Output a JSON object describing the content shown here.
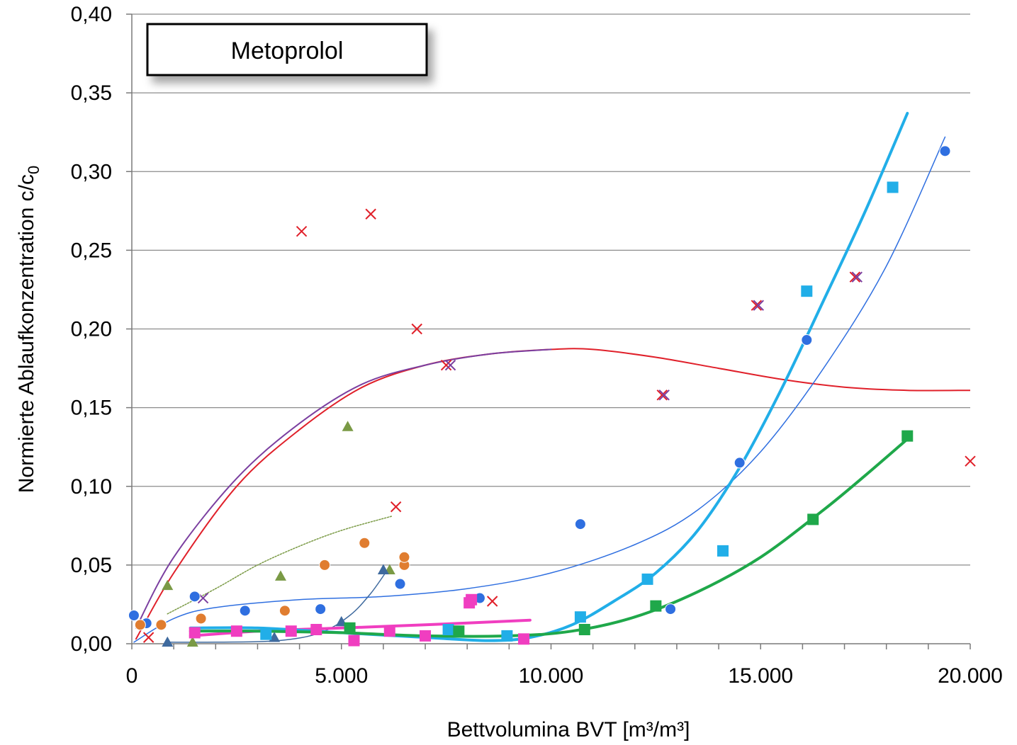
{
  "chart_data": {
    "type": "scatter",
    "title": "Metoprolol",
    "xlabel": "Bettvolumina  BVT [m³/m³]",
    "ylabel_main": "Normierte  Ablaufkonzentration  c/c",
    "ylabel_sub": "0",
    "xlim": [
      0,
      20000
    ],
    "ylim": [
      0,
      0.4
    ],
    "x_ticks": [
      0,
      5000,
      10000,
      15000,
      20000
    ],
    "x_tick_labels": [
      "0",
      "5.000",
      "10.000",
      "15.000",
      "20.000"
    ],
    "y_ticks": [
      0,
      0.05,
      0.1,
      0.15,
      0.2,
      0.25,
      0.3,
      0.35,
      0.4
    ],
    "y_tick_labels": [
      "0,00",
      "0,05",
      "0,10",
      "0,15",
      "0,20",
      "0,25",
      "0,30",
      "0,35",
      "0,40"
    ],
    "grid": "horizontal",
    "legend": "top-left",
    "series": [
      {
        "marker": "x",
        "color": "#e0202a",
        "points": [
          [
            400,
            0.004
          ],
          [
            4050,
            0.262
          ],
          [
            5700,
            0.273
          ],
          [
            6300,
            0.087
          ],
          [
            6800,
            0.2
          ],
          [
            7500,
            0.177
          ],
          [
            8600,
            0.027
          ],
          [
            12650,
            0.158
          ],
          [
            14900,
            0.215
          ],
          [
            17250,
            0.233
          ],
          [
            20000,
            0.116
          ]
        ],
        "trend": {
          "color": "#e0202a",
          "width": 2,
          "points": [
            [
              100,
              0.003
            ],
            [
              1000,
              0.045
            ],
            [
              2500,
              0.1
            ],
            [
              4000,
              0.136
            ],
            [
              5500,
              0.163
            ],
            [
              7000,
              0.177
            ],
            [
              8500,
              0.184
            ],
            [
              10000,
              0.187
            ],
            [
              11000,
              0.187
            ],
            [
              12500,
              0.182
            ],
            [
              14000,
              0.175
            ],
            [
              15500,
              0.168
            ],
            [
              17000,
              0.163
            ],
            [
              18500,
              0.161
            ],
            [
              20000,
              0.161
            ]
          ]
        }
      },
      {
        "marker": "x",
        "color": "#7b3fa0",
        "points": [
          [
            1700,
            0.029
          ],
          [
            7600,
            0.177
          ],
          [
            12700,
            0.158
          ],
          [
            14950,
            0.215
          ],
          [
            17300,
            0.233
          ]
        ],
        "trend": {
          "color": "#7b3fa0",
          "width": 2,
          "points": [
            [
              100,
              0.01
            ],
            [
              1000,
              0.055
            ],
            [
              2500,
              0.105
            ],
            [
              4000,
              0.14
            ],
            [
              5500,
              0.165
            ],
            [
              7000,
              0.177
            ],
            [
              8500,
              0.184
            ],
            [
              10000,
              0.187
            ]
          ]
        }
      },
      {
        "marker": "circle",
        "color": "#2f6fe0",
        "points": [
          [
            50,
            0.018
          ],
          [
            350,
            0.013
          ],
          [
            1500,
            0.03
          ],
          [
            2700,
            0.021
          ],
          [
            4500,
            0.022
          ],
          [
            6400,
            0.038
          ],
          [
            8300,
            0.029
          ],
          [
            10700,
            0.076
          ],
          [
            12850,
            0.022
          ],
          [
            14500,
            0.115
          ],
          [
            16100,
            0.193
          ],
          [
            19400,
            0.313
          ]
        ],
        "trend": {
          "color": "#2f6fe0",
          "width": 1.5,
          "points": [
            [
              50,
              0.001
            ],
            [
              1000,
              0.016
            ],
            [
              2000,
              0.023
            ],
            [
              4000,
              0.028
            ],
            [
              6000,
              0.03
            ],
            [
              8000,
              0.035
            ],
            [
              10000,
              0.045
            ],
            [
              12000,
              0.063
            ],
            [
              13500,
              0.085
            ],
            [
              15000,
              0.122
            ],
            [
              16500,
              0.175
            ],
            [
              18000,
              0.24
            ],
            [
              19400,
              0.322
            ]
          ]
        }
      },
      {
        "marker": "circle",
        "color": "#e07d30",
        "points": [
          [
            200,
            0.012
          ],
          [
            700,
            0.012
          ],
          [
            1650,
            0.016
          ],
          [
            3650,
            0.021
          ],
          [
            4600,
            0.05
          ],
          [
            5550,
            0.064
          ],
          [
            6500,
            0.05
          ],
          [
            6500,
            0.055
          ]
        ],
        "trend": null
      },
      {
        "marker": "triangle",
        "color": "#7a9a45",
        "points": [
          [
            850,
            0.037
          ],
          [
            1450,
            0.001
          ],
          [
            3550,
            0.043
          ],
          [
            5150,
            0.138
          ],
          [
            6150,
            0.047
          ]
        ],
        "trend": {
          "color": "#7a9a45",
          "width": 1.5,
          "dashed": true,
          "points": [
            [
              850,
              0.019
            ],
            [
              2000,
              0.035
            ],
            [
              3000,
              0.05
            ],
            [
              4000,
              0.062
            ],
            [
              5000,
              0.072
            ],
            [
              6200,
              0.081
            ]
          ]
        }
      },
      {
        "marker": "triangle",
        "color": "#3f6a9e",
        "points": [
          [
            850,
            0.001
          ],
          [
            3400,
            0.004
          ],
          [
            5000,
            0.014
          ],
          [
            6000,
            0.047
          ]
        ],
        "trend": {
          "color": "#3f6a9e",
          "width": 1.5,
          "points": [
            [
              850,
              0.001
            ],
            [
              2000,
              0.001
            ],
            [
              3500,
              0.002
            ],
            [
              4500,
              0.007
            ],
            [
              5200,
              0.018
            ],
            [
              5700,
              0.032
            ],
            [
              6100,
              0.047
            ]
          ]
        }
      },
      {
        "marker": "square",
        "color": "#f03ec0",
        "points": [
          [
            1500,
            0.007
          ],
          [
            2500,
            0.008
          ],
          [
            3800,
            0.008
          ],
          [
            4400,
            0.009
          ],
          [
            5300,
            0.002
          ],
          [
            6150,
            0.008
          ],
          [
            7000,
            0.005
          ],
          [
            8050,
            0.026
          ],
          [
            8100,
            0.028
          ],
          [
            9350,
            0.003
          ]
        ],
        "trend": {
          "color": "#f03ec0",
          "width": 4,
          "points": [
            [
              1400,
              0.005
            ],
            [
              3000,
              0.008
            ],
            [
              5000,
              0.01
            ],
            [
              7000,
              0.012
            ],
            [
              9500,
              0.015
            ]
          ]
        }
      },
      {
        "marker": "square",
        "color": "#21aee8",
        "points": [
          [
            3200,
            0.006
          ],
          [
            7550,
            0.009
          ],
          [
            8950,
            0.005
          ],
          [
            10700,
            0.017
          ],
          [
            12300,
            0.041
          ],
          [
            14100,
            0.059
          ],
          [
            16100,
            0.224
          ],
          [
            18150,
            0.29
          ]
        ],
        "trend": {
          "color": "#21aee8",
          "width": 4,
          "points": [
            [
              1400,
              0.01
            ],
            [
              3000,
              0.01
            ],
            [
              5000,
              0.007
            ],
            [
              7000,
              0.004
            ],
            [
              8500,
              0.002
            ],
            [
              9500,
              0.004
            ],
            [
              10500,
              0.012
            ],
            [
              11500,
              0.027
            ],
            [
              12500,
              0.045
            ],
            [
              13500,
              0.072
            ],
            [
              14500,
              0.112
            ],
            [
              15500,
              0.162
            ],
            [
              16500,
              0.218
            ],
            [
              17500,
              0.275
            ],
            [
              18500,
              0.337
            ]
          ]
        }
      },
      {
        "marker": "square",
        "color": "#1fa84a",
        "points": [
          [
            5200,
            0.01
          ],
          [
            7800,
            0.008
          ],
          [
            10800,
            0.009
          ],
          [
            12500,
            0.024
          ],
          [
            16250,
            0.079
          ],
          [
            18500,
            0.132
          ]
        ],
        "trend": {
          "color": "#1fa84a",
          "width": 4,
          "points": [
            [
              1400,
              0.008
            ],
            [
              3000,
              0.008
            ],
            [
              5000,
              0.007
            ],
            [
              7000,
              0.005
            ],
            [
              9000,
              0.005
            ],
            [
              10500,
              0.008
            ],
            [
              12000,
              0.017
            ],
            [
              13500,
              0.033
            ],
            [
              15000,
              0.055
            ],
            [
              16500,
              0.085
            ],
            [
              17500,
              0.107
            ],
            [
              18500,
              0.13
            ]
          ]
        }
      }
    ]
  }
}
